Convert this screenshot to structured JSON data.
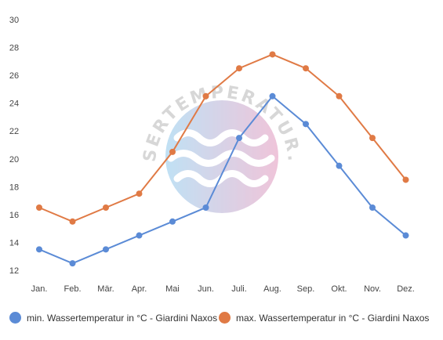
{
  "watermark": "WASSERTEMPERATUR.ORG",
  "chart_data": {
    "type": "line",
    "categories": [
      "Jan.",
      "Feb.",
      "Mär.",
      "Apr.",
      "Mai",
      "Jun.",
      "Juli.",
      "Aug.",
      "Sep.",
      "Okt.",
      "Nov.",
      "Dez."
    ],
    "ylim": [
      12,
      30
    ],
    "yticks": [
      12,
      14,
      16,
      18,
      20,
      22,
      24,
      26,
      28,
      30
    ],
    "grid": false,
    "legend_position": "bottom",
    "series": [
      {
        "name": "min. Wassertemperatur in °C - Giardini Naxos",
        "color": "#5b8bd6",
        "values": [
          13.5,
          12.5,
          13.5,
          14.5,
          15.5,
          16.5,
          21.5,
          24.5,
          22.5,
          19.5,
          16.5,
          14.5
        ]
      },
      {
        "name": "max. Wassertemperatur in °C - Giardini Naxos",
        "color": "#e07a45",
        "values": [
          16.5,
          15.5,
          16.5,
          17.5,
          20.5,
          24.5,
          26.5,
          27.5,
          26.5,
          24.5,
          21.5,
          18.5
        ]
      }
    ]
  }
}
